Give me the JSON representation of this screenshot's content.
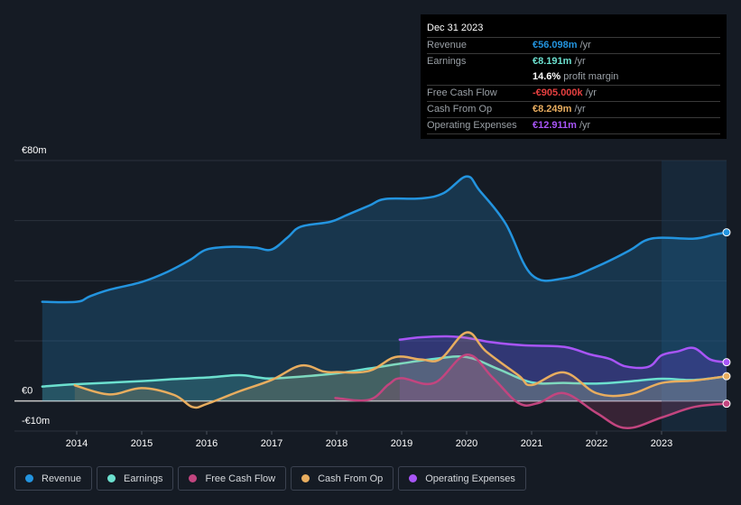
{
  "tooltip": {
    "date": "Dec 31 2023",
    "rows": [
      {
        "label": "Revenue",
        "value": "€56.098m",
        "unit": " /yr",
        "color": "#2394df"
      },
      {
        "label": "Earnings",
        "value": "€8.191m",
        "unit": " /yr",
        "color": "#6ce0cf"
      },
      {
        "label": "",
        "value": "14.6%",
        "unit": " profit margin",
        "color": "#ffffff"
      },
      {
        "label": "Free Cash Flow",
        "value": "-€905.000k",
        "unit": " /yr",
        "color": "#e64040"
      },
      {
        "label": "Cash From Op",
        "value": "€8.249m",
        "unit": " /yr",
        "color": "#e8ad5f"
      },
      {
        "label": "Operating Expenses",
        "value": "€12.911m",
        "unit": " /yr",
        "color": "#a855f7"
      }
    ]
  },
  "legend": [
    {
      "label": "Revenue",
      "color": "#2394df"
    },
    {
      "label": "Earnings",
      "color": "#6ce0cf"
    },
    {
      "label": "Free Cash Flow",
      "color": "#c2457f"
    },
    {
      "label": "Cash From Op",
      "color": "#e8ad5f"
    },
    {
      "label": "Operating Expenses",
      "color": "#a855f7"
    }
  ],
  "chart_data": {
    "type": "area",
    "title": "",
    "xlabel": "",
    "ylabel": "",
    "ylim": [
      -10,
      80
    ],
    "xlim": [
      2013.5,
      2024.0
    ],
    "y_ticks": [
      {
        "value": 80,
        "label": "€80m"
      },
      {
        "value": 0,
        "label": "€0"
      },
      {
        "value": -10,
        "label": "-€10m"
      }
    ],
    "gridlines": [
      80,
      60,
      40,
      20,
      0
    ],
    "x_ticks": [
      2014,
      2015,
      2016,
      2017,
      2018,
      2019,
      2020,
      2021,
      2022,
      2023
    ],
    "highlight_start": 2023.0,
    "series": [
      {
        "name": "Revenue",
        "color": "#2394df",
        "fill": "rgba(35,148,223,0.22)",
        "end_marker": true,
        "points": [
          [
            2013.47,
            33
          ],
          [
            2014.0,
            33
          ],
          [
            2014.2,
            34.8
          ],
          [
            2014.5,
            37
          ],
          [
            2015.0,
            39.6
          ],
          [
            2015.4,
            43
          ],
          [
            2015.75,
            47
          ],
          [
            2016.0,
            50.4
          ],
          [
            2016.4,
            51.3
          ],
          [
            2016.75,
            51
          ],
          [
            2017.0,
            50.4
          ],
          [
            2017.25,
            54.5
          ],
          [
            2017.45,
            58
          ],
          [
            2017.9,
            59.6
          ],
          [
            2018.15,
            61.8
          ],
          [
            2018.5,
            65
          ],
          [
            2018.75,
            67.2
          ],
          [
            2019.3,
            67.4
          ],
          [
            2019.65,
            69.2
          ],
          [
            2020.0,
            74.7
          ],
          [
            2020.2,
            70
          ],
          [
            2020.6,
            59
          ],
          [
            2021.0,
            42
          ],
          [
            2021.5,
            40.8
          ],
          [
            2022.0,
            44.7
          ],
          [
            2022.5,
            50
          ],
          [
            2022.75,
            53.4
          ],
          [
            2023.0,
            54.3
          ],
          [
            2023.5,
            54
          ],
          [
            2023.8,
            55.3
          ],
          [
            2024.0,
            56.1
          ]
        ]
      },
      {
        "name": "Operating Expenses",
        "color": "#a855f7",
        "fill": "rgba(124,58,237,0.25)",
        "end_marker": true,
        "points": [
          [
            2018.97,
            20.4
          ],
          [
            2019.3,
            21.2
          ],
          [
            2019.7,
            21.5
          ],
          [
            2020.0,
            21.0
          ],
          [
            2020.4,
            19.5
          ],
          [
            2020.9,
            18.5
          ],
          [
            2021.5,
            18.0
          ],
          [
            2021.9,
            15.5
          ],
          [
            2022.2,
            14
          ],
          [
            2022.45,
            11.5
          ],
          [
            2022.8,
            11.4
          ],
          [
            2023.0,
            15.2
          ],
          [
            2023.25,
            16.5
          ],
          [
            2023.5,
            17.6
          ],
          [
            2023.75,
            13.8
          ],
          [
            2024.0,
            12.9
          ]
        ]
      },
      {
        "name": "Earnings",
        "color": "#6ce0cf",
        "fill": "rgba(108,224,207,0.18)",
        "end_marker": false,
        "points": [
          [
            2013.47,
            4.8
          ],
          [
            2014.0,
            5.6
          ],
          [
            2015.0,
            6.6
          ],
          [
            2015.5,
            7.3
          ],
          [
            2016.0,
            7.8
          ],
          [
            2016.5,
            8.6
          ],
          [
            2016.8,
            7.8
          ],
          [
            2017.0,
            7.5
          ],
          [
            2017.5,
            8.2
          ],
          [
            2018.0,
            9.2
          ],
          [
            2018.5,
            10.8
          ],
          [
            2019.0,
            12.5
          ],
          [
            2019.5,
            14.0
          ],
          [
            2020.0,
            14.6
          ],
          [
            2020.5,
            10.5
          ],
          [
            2021.0,
            6.2
          ],
          [
            2021.5,
            6.0
          ],
          [
            2022.0,
            5.8
          ],
          [
            2022.5,
            6.5
          ],
          [
            2023.0,
            7.4
          ],
          [
            2023.5,
            7.0
          ],
          [
            2024.0,
            8.2
          ]
        ]
      },
      {
        "name": "Cash From Op",
        "color": "#e8ad5f",
        "fill": "rgba(232,173,95,0.15)",
        "end_marker": true,
        "points": [
          [
            2013.97,
            5.2
          ],
          [
            2014.5,
            2.2
          ],
          [
            2015.0,
            4.3
          ],
          [
            2015.5,
            2.0
          ],
          [
            2015.78,
            -2.0
          ],
          [
            2016.0,
            -1.0
          ],
          [
            2016.5,
            3.2
          ],
          [
            2017.0,
            7.0
          ],
          [
            2017.45,
            11.8
          ],
          [
            2017.8,
            9.8
          ],
          [
            2018.0,
            9.6
          ],
          [
            2018.5,
            10.0
          ],
          [
            2018.9,
            14.6
          ],
          [
            2019.3,
            13.8
          ],
          [
            2019.6,
            14.0
          ],
          [
            2020.0,
            22.8
          ],
          [
            2020.3,
            16.5
          ],
          [
            2020.8,
            8.5
          ],
          [
            2021.0,
            5.3
          ],
          [
            2021.5,
            9.5
          ],
          [
            2022.0,
            2.6
          ],
          [
            2022.5,
            2.2
          ],
          [
            2023.0,
            6.0
          ],
          [
            2023.5,
            6.8
          ],
          [
            2024.0,
            8.25
          ]
        ]
      },
      {
        "name": "Free Cash Flow",
        "color": "#c2457f",
        "fill": "rgba(194,69,127,0.2)",
        "end_marker": true,
        "points": [
          [
            2017.98,
            1.0
          ],
          [
            2018.5,
            0.4
          ],
          [
            2018.8,
            5.5
          ],
          [
            2019.0,
            7.6
          ],
          [
            2019.5,
            6.0
          ],
          [
            2020.0,
            15.4
          ],
          [
            2020.4,
            7.8
          ],
          [
            2020.8,
            -0.7
          ],
          [
            2021.1,
            -0.7
          ],
          [
            2021.5,
            2.6
          ],
          [
            2022.0,
            -4.0
          ],
          [
            2022.45,
            -9.0
          ],
          [
            2023.0,
            -5.5
          ],
          [
            2023.5,
            -2.0
          ],
          [
            2024.0,
            -0.9
          ]
        ]
      }
    ]
  }
}
